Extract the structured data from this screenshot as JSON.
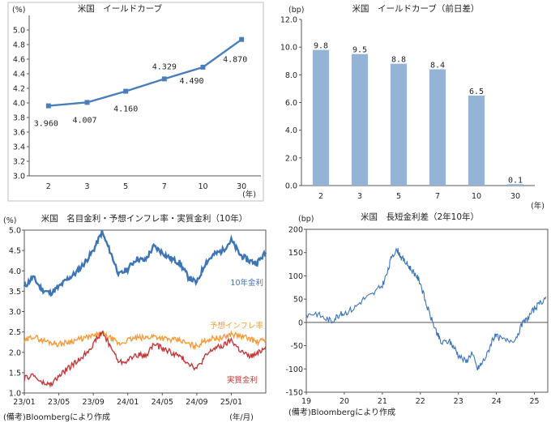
{
  "chart_data": [
    {
      "type": "line",
      "title": "米国　イールドカーブ",
      "unit": "(%)",
      "x_unit": "(年)",
      "categories": [
        "2",
        "3",
        "5",
        "7",
        "10",
        "30"
      ],
      "series": [
        {
          "values": [
            3.96,
            4.007,
            4.16,
            4.329,
            4.49,
            4.87
          ]
        }
      ],
      "data_labels": [
        "3.960",
        "4.007",
        "4.160",
        "4.329",
        "4.490",
        "4.870"
      ],
      "ylim": [
        3.0,
        5.0
      ],
      "yticks": [
        "3.0",
        "3.2",
        "3.4",
        "3.6",
        "3.8",
        "4.0",
        "4.2",
        "4.4",
        "4.6",
        "4.8",
        "5.0"
      ],
      "grid": false,
      "color": "#4a7ebb"
    },
    {
      "type": "bar",
      "title": "米国　イールドカーブ（前日差）",
      "unit": "(bp)",
      "x_unit": "(年)",
      "categories": [
        "2",
        "3",
        "5",
        "7",
        "10",
        "30"
      ],
      "values": [
        9.8,
        9.5,
        8.8,
        8.4,
        6.5,
        0.1
      ],
      "data_labels": [
        "9.8",
        "9.5",
        "8.8",
        "8.4",
        "6.5",
        "0.1"
      ],
      "ylim": [
        0,
        12
      ],
      "yticks": [
        "0.0",
        "2.0",
        "4.0",
        "6.0",
        "8.0",
        "10.0",
        "12.0"
      ],
      "grid": false,
      "color": "#95b3d7"
    },
    {
      "type": "line",
      "title": "米国　名目金利・予想インフレ率・実質金利（10年）",
      "unit": "(%)",
      "x_unit": "(年/月)",
      "note": "(備考)Bloombergにより作成",
      "xticks": [
        "23/01",
        "23/05",
        "23/09",
        "24/01",
        "24/05",
        "24/09",
        "25/01"
      ],
      "xlim": [
        "2023-01",
        "2025-05"
      ],
      "ylim": [
        1.0,
        5.0
      ],
      "yticks": [
        "1.0",
        "1.5",
        "2.0",
        "2.5",
        "3.0",
        "3.5",
        "4.0",
        "4.5",
        "5.0"
      ],
      "grid": false,
      "series": [
        {
          "name": "10年金利",
          "color": "#3d74b3",
          "x": [
            "2023-01",
            "2023-02",
            "2023-03",
            "2023-04",
            "2023-05",
            "2023-06",
            "2023-07",
            "2023-08",
            "2023-09",
            "2023-10",
            "2023-11",
            "2023-12",
            "2024-01",
            "2024-02",
            "2024-03",
            "2024-04",
            "2024-05",
            "2024-06",
            "2024-07",
            "2024-08",
            "2024-09",
            "2024-10",
            "2024-11",
            "2024-12",
            "2025-01",
            "2025-02",
            "2025-03",
            "2025-04",
            "2025-05"
          ],
          "values": [
            3.6,
            3.85,
            3.55,
            3.45,
            3.6,
            3.8,
            3.95,
            4.2,
            4.5,
            4.95,
            4.45,
            3.9,
            4.05,
            4.3,
            4.25,
            4.6,
            4.45,
            4.3,
            4.2,
            3.85,
            3.7,
            4.2,
            4.4,
            4.5,
            4.75,
            4.4,
            4.25,
            4.2,
            4.45
          ]
        },
        {
          "name": "予想インフレ率",
          "color": "#f39c3d",
          "x": [
            "2023-01",
            "2023-02",
            "2023-03",
            "2023-04",
            "2023-05",
            "2023-06",
            "2023-07",
            "2023-08",
            "2023-09",
            "2023-10",
            "2023-11",
            "2023-12",
            "2024-01",
            "2024-02",
            "2024-03",
            "2024-04",
            "2024-05",
            "2024-06",
            "2024-07",
            "2024-08",
            "2024-09",
            "2024-10",
            "2024-11",
            "2024-12",
            "2025-01",
            "2025-02",
            "2025-03",
            "2025-04",
            "2025-05"
          ],
          "values": [
            2.25,
            2.4,
            2.3,
            2.25,
            2.2,
            2.25,
            2.3,
            2.35,
            2.4,
            2.45,
            2.35,
            2.2,
            2.3,
            2.35,
            2.35,
            2.4,
            2.35,
            2.3,
            2.3,
            2.2,
            2.15,
            2.3,
            2.35,
            2.35,
            2.45,
            2.4,
            2.35,
            2.25,
            2.3
          ]
        },
        {
          "name": "実質金利",
          "color": "#c0393b",
          "x": [
            "2023-01",
            "2023-02",
            "2023-03",
            "2023-04",
            "2023-05",
            "2023-06",
            "2023-07",
            "2023-08",
            "2023-09",
            "2023-10",
            "2023-11",
            "2023-12",
            "2024-01",
            "2024-02",
            "2024-03",
            "2024-04",
            "2024-05",
            "2024-06",
            "2024-07",
            "2024-08",
            "2024-09",
            "2024-10",
            "2024-11",
            "2024-12",
            "2025-01",
            "2025-02",
            "2025-03",
            "2025-04",
            "2025-05"
          ],
          "values": [
            1.35,
            1.45,
            1.25,
            1.2,
            1.4,
            1.6,
            1.75,
            1.95,
            2.2,
            2.5,
            2.15,
            1.75,
            1.8,
            1.95,
            1.9,
            2.2,
            2.1,
            2.0,
            1.9,
            1.75,
            1.6,
            1.9,
            2.1,
            2.15,
            2.3,
            2.05,
            1.9,
            1.95,
            2.15
          ]
        }
      ]
    },
    {
      "type": "line",
      "title": "米国　長短金利差（2年10年）",
      "unit": "(bp)",
      "note": "(備考)Bloombergにより作成",
      "xticks": [
        "19",
        "20",
        "21",
        "22",
        "23",
        "24",
        "25"
      ],
      "xlim": [
        2019.0,
        2025.35
      ],
      "ylim": [
        -150,
        200
      ],
      "yticks": [
        "-150",
        "-100",
        "-50",
        "0",
        "50",
        "100",
        "150",
        "200"
      ],
      "grid": false,
      "series": [
        {
          "color": "#3d74b3",
          "x": [
            2019.0,
            2019.25,
            2019.5,
            2019.67,
            2019.83,
            2020.0,
            2020.25,
            2020.5,
            2020.75,
            2021.0,
            2021.15,
            2021.25,
            2021.4,
            2021.5,
            2021.65,
            2021.75,
            2021.9,
            2022.0,
            2022.15,
            2022.3,
            2022.45,
            2022.55,
            2022.75,
            2022.9,
            2023.0,
            2023.2,
            2023.35,
            2023.5,
            2023.6,
            2023.75,
            2023.9,
            2024.0,
            2024.25,
            2024.5,
            2024.67,
            2024.83,
            2025.0,
            2025.15,
            2025.3
          ],
          "values": [
            16,
            20,
            8,
            3,
            15,
            20,
            30,
            50,
            60,
            80,
            110,
            145,
            155,
            140,
            125,
            115,
            100,
            85,
            40,
            5,
            -25,
            -45,
            -40,
            -55,
            -70,
            -85,
            -65,
            -100,
            -90,
            -70,
            -35,
            -30,
            -40,
            -35,
            -5,
            10,
            30,
            40,
            55
          ]
        }
      ]
    }
  ]
}
